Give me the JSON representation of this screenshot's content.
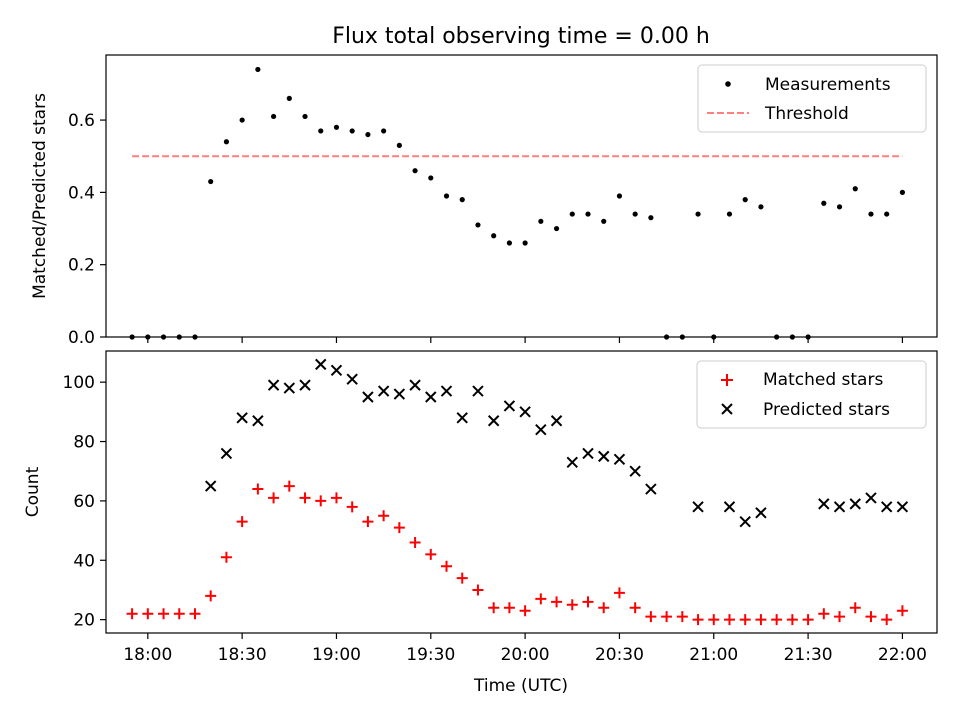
{
  "title": "Flux total observing time = 0.00 h",
  "top_ylabel": "Matched/Predicted stars",
  "bottom_ylabel": "Count",
  "xlabel": "Time (UTC)",
  "x_ticks": [
    "18:00",
    "18:30",
    "19:00",
    "19:30",
    "20:00",
    "20:30",
    "21:00",
    "21:30",
    "22:00"
  ],
  "top_y_ticks": [
    "0.0",
    "0.2",
    "0.4",
    "0.6"
  ],
  "bottom_y_ticks": [
    "20",
    "40",
    "60",
    "80",
    "100"
  ],
  "legend_top": {
    "measurements": "Measurements",
    "threshold": "Threshold"
  },
  "legend_bottom": {
    "matched": "Matched stars",
    "predicted": "Predicted stars"
  },
  "colors": {
    "measurements": "#000000",
    "threshold": "#ff7f7f",
    "matched": "#ff0000",
    "predicted": "#000000"
  },
  "chart_data": [
    {
      "type": "scatter",
      "title": "Flux total observing time = 0.00 h",
      "xlabel": "",
      "ylabel": "Matched/Predicted stars",
      "x_unit": "minutes after 18:00 UTC",
      "xlim": [
        "17:45",
        "22:10"
      ],
      "ylim": [
        0,
        0.78
      ],
      "legend": "top-right",
      "series": [
        {
          "name": "Measurements",
          "marker": "dot",
          "x": [
            -5,
            0,
            5,
            10,
            15,
            20,
            25,
            30,
            35,
            40,
            45,
            50,
            55,
            60,
            65,
            70,
            75,
            80,
            85,
            90,
            95,
            100,
            105,
            110,
            115,
            120,
            125,
            130,
            135,
            140,
            145,
            150,
            155,
            160,
            165,
            170,
            175,
            180,
            185,
            190,
            195,
            200,
            205,
            210,
            215,
            220,
            225,
            230,
            235,
            240
          ],
          "y": [
            0,
            0,
            0,
            0,
            0,
            0.43,
            0.54,
            0.6,
            0.74,
            0.61,
            0.66,
            0.61,
            0.57,
            0.58,
            0.57,
            0.56,
            0.57,
            0.53,
            0.46,
            0.44,
            0.39,
            0.38,
            0.31,
            0.28,
            0.26,
            0.26,
            0.32,
            0.3,
            0.34,
            0.34,
            0.32,
            0.39,
            0.34,
            0.33,
            0,
            0,
            0.34,
            0,
            0.34,
            0.38,
            0.36,
            0,
            0,
            0,
            0.37,
            0.36,
            0.41,
            0.34,
            0.34,
            0.4
          ]
        },
        {
          "name": "Threshold",
          "style": "dashed",
          "x": [
            -5,
            240
          ],
          "y": [
            0.5,
            0.5
          ]
        }
      ]
    },
    {
      "type": "scatter",
      "xlabel": "Time (UTC)",
      "ylabel": "Count",
      "x_unit": "minutes after 18:00 UTC",
      "xlim": [
        "17:45",
        "22:10"
      ],
      "ylim": [
        15.5,
        110.5
      ],
      "x_tick_labels": [
        "18:00",
        "18:30",
        "19:00",
        "19:30",
        "20:00",
        "20:30",
        "21:00",
        "21:30",
        "22:00"
      ],
      "legend": "top-right",
      "series": [
        {
          "name": "Matched stars",
          "marker": "plus",
          "x": [
            -5,
            0,
            5,
            10,
            15,
            20,
            25,
            30,
            35,
            40,
            45,
            50,
            55,
            60,
            65,
            70,
            75,
            80,
            85,
            90,
            95,
            100,
            105,
            110,
            115,
            120,
            125,
            130,
            135,
            140,
            145,
            150,
            155,
            160,
            165,
            170,
            175,
            180,
            185,
            190,
            195,
            200,
            205,
            210,
            215,
            220,
            225,
            230,
            235,
            240
          ],
          "y": [
            22,
            22,
            22,
            22,
            22,
            28,
            41,
            53,
            64,
            61,
            65,
            61,
            60,
            61,
            58,
            53,
            55,
            51,
            46,
            42,
            38,
            34,
            30,
            24,
            24,
            23,
            27,
            26,
            25,
            26,
            24,
            29,
            24,
            21,
            21,
            21,
            20,
            20,
            20,
            20,
            20,
            20,
            20,
            20,
            22,
            21,
            24,
            21,
            20,
            23
          ]
        },
        {
          "name": "Predicted stars",
          "marker": "x",
          "x": [
            20,
            25,
            30,
            35,
            40,
            45,
            50,
            55,
            60,
            65,
            70,
            75,
            80,
            85,
            90,
            95,
            100,
            105,
            110,
            115,
            120,
            125,
            130,
            135,
            140,
            145,
            150,
            155,
            160,
            175,
            185,
            190,
            195,
            215,
            220,
            225,
            230,
            235,
            240
          ],
          "y": [
            65,
            76,
            88,
            87,
            99,
            98,
            99,
            106,
            104,
            101,
            95,
            97,
            96,
            99,
            95,
            97,
            88,
            97,
            87,
            92,
            90,
            84,
            87,
            73,
            76,
            75,
            74,
            70,
            64,
            58,
            58,
            53,
            56,
            59,
            58,
            59,
            61,
            58,
            58
          ]
        }
      ]
    }
  ]
}
